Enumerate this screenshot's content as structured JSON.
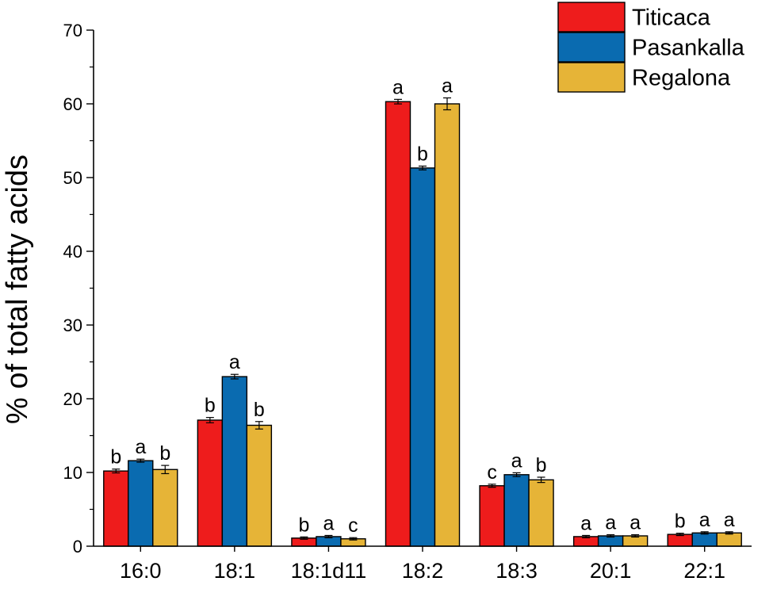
{
  "chart_data": {
    "type": "bar",
    "title": "",
    "xlabel": "",
    "ylabel": "% of total fatty acids",
    "ylim": [
      0,
      70
    ],
    "yticks": [
      0,
      10,
      20,
      30,
      40,
      50,
      60,
      70
    ],
    "categories": [
      "16:0",
      "18:1",
      "18:1d11",
      "18:2",
      "18:3",
      "20:1",
      "22:1"
    ],
    "legend_position": "top-right",
    "series": [
      {
        "name": "Titicaca",
        "color": "#ee1c1c",
        "values": [
          10.2,
          17.1,
          1.1,
          60.3,
          8.2,
          1.3,
          1.6
        ],
        "errors": [
          0.15,
          0.25,
          0.05,
          0.2,
          0.1,
          0.05,
          0.05
        ],
        "letters": [
          "b",
          "b",
          "b",
          "a",
          "c",
          "a",
          "b"
        ]
      },
      {
        "name": "Pasankalla",
        "color": "#0a6bb0",
        "values": [
          11.6,
          23.0,
          1.3,
          51.3,
          9.7,
          1.4,
          1.8
        ],
        "errors": [
          0.1,
          0.2,
          0.05,
          0.15,
          0.15,
          0.05,
          0.05
        ],
        "letters": [
          "a",
          "a",
          "a",
          "b",
          "a",
          "a",
          "a"
        ]
      },
      {
        "name": "Regalona",
        "color": "#e6b437",
        "values": [
          10.4,
          16.4,
          1.0,
          60.0,
          9.0,
          1.4,
          1.8
        ],
        "errors": [
          0.45,
          0.4,
          0.05,
          0.7,
          0.25,
          0.05,
          0.05
        ],
        "letters": [
          "b",
          "b",
          "c",
          "a",
          "b",
          "a",
          "a"
        ]
      }
    ]
  }
}
